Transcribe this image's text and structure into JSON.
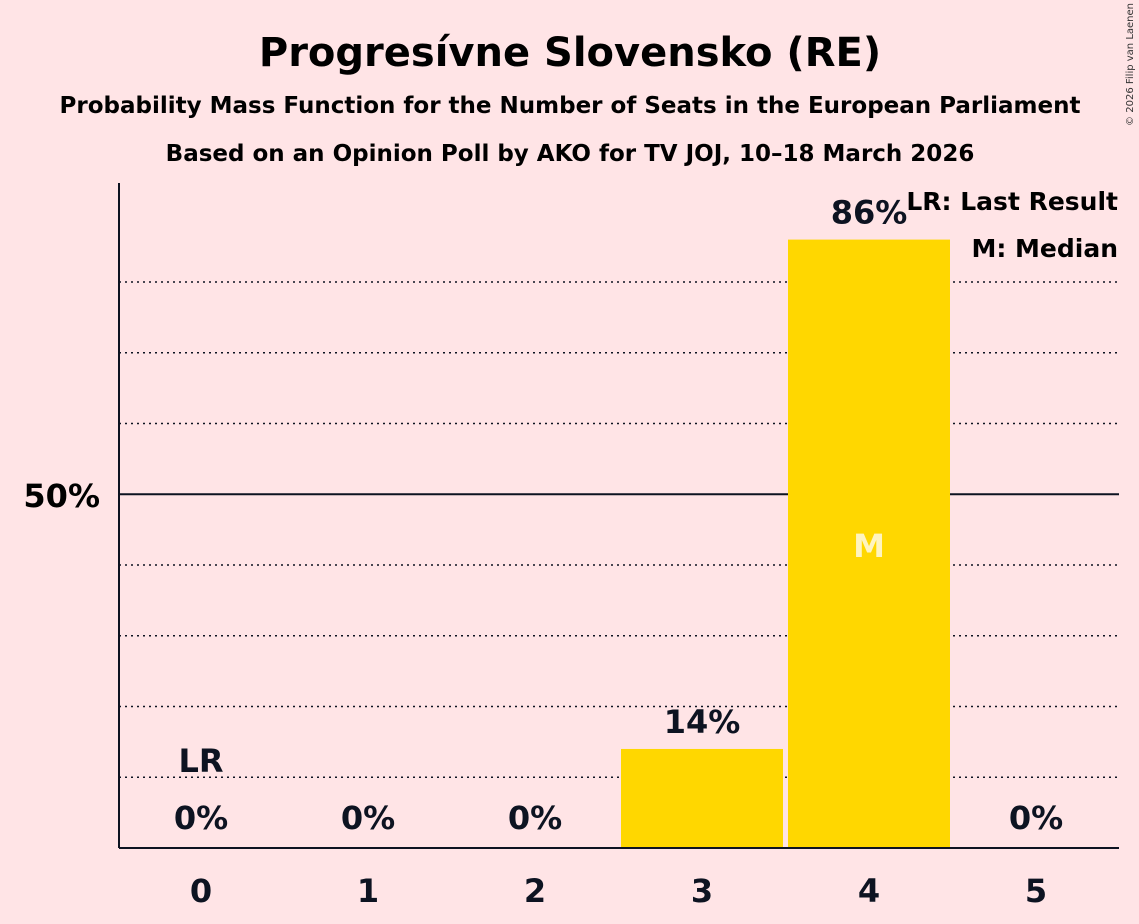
{
  "chart_data": {
    "type": "bar",
    "title": "Progresívne Slovensko (RE)",
    "subtitle1": "Probability Mass Function for the Number of Seats in the European Parliament",
    "subtitle2": "Based on an Opinion Poll by AKO for TV JOJ, 10–18 March 2026",
    "categories": [
      "0",
      "1",
      "2",
      "3",
      "4",
      "5"
    ],
    "values": [
      0,
      0,
      0,
      14,
      86,
      0
    ],
    "labels": [
      "0%",
      "0%",
      "0%",
      "14%",
      "86%",
      "0%"
    ],
    "ylim": [
      0,
      94
    ],
    "ytick_value": 50,
    "ytick_label": "50%",
    "gridlines": [
      10,
      20,
      30,
      40,
      60,
      70,
      80
    ],
    "last_result_index": 0,
    "last_result_marker": "LR",
    "median_index": 4,
    "median_marker": "M",
    "legend": [
      "LR: Last Result",
      "M: Median"
    ],
    "bar_color": "#FFD700",
    "median_text_color": "#FFF4C0"
  },
  "copyright": "© 2026 Filip van Laenen"
}
